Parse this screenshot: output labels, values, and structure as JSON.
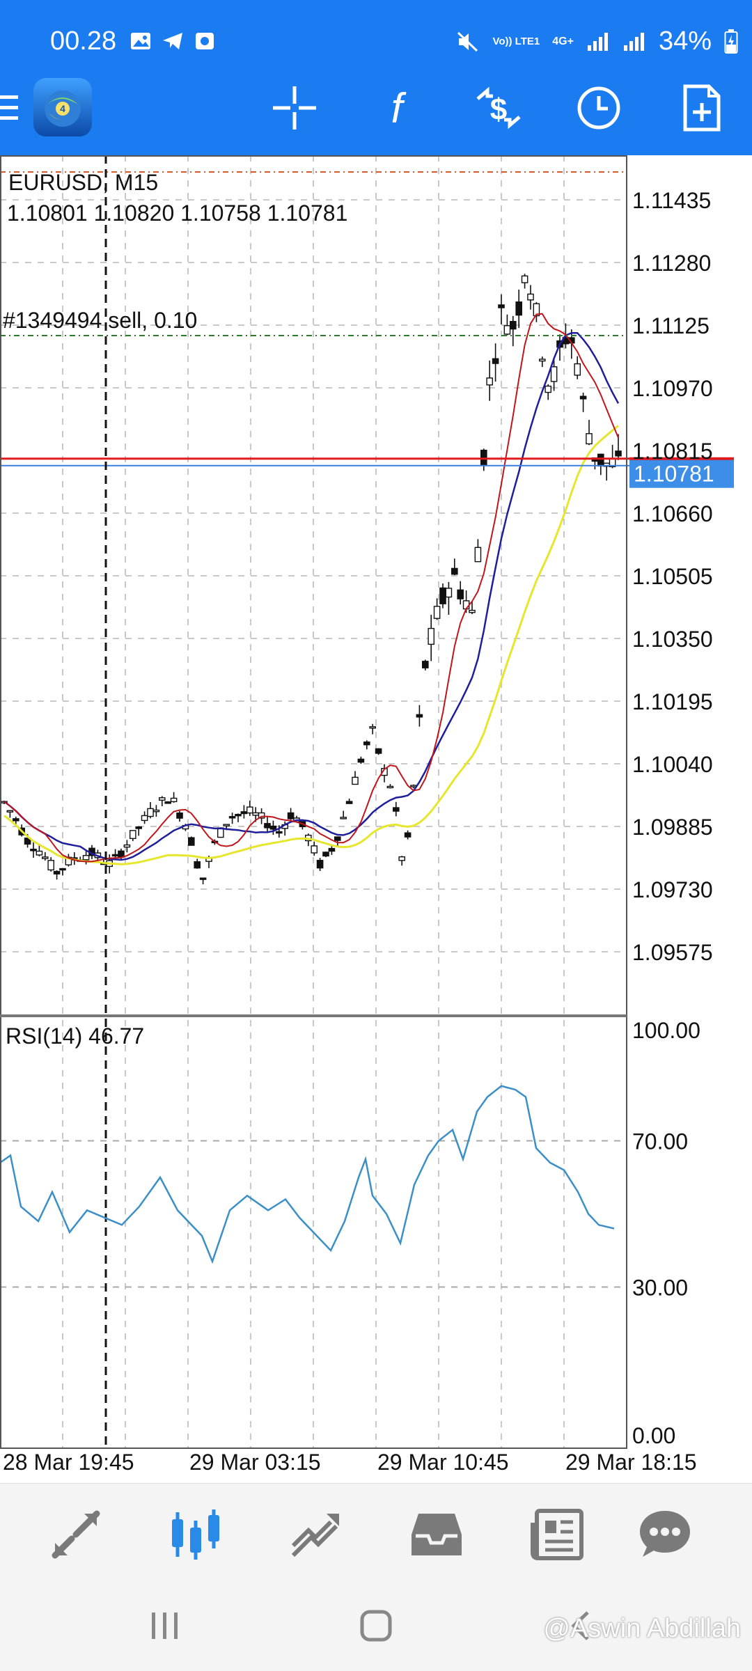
{
  "status_bar": {
    "time": "00.28",
    "network": "4G+",
    "volte": "Vo)) LTE1",
    "battery": "34%"
  },
  "toolbar": {
    "icons": [
      "menu-icon",
      "crosshair-icon",
      "indicators-icon",
      "trade-icon",
      "clock-icon",
      "new-order-icon"
    ]
  },
  "chart": {
    "symbol_timeframe": "EURUSD, M15",
    "ohlc": "1.10801 1.10820 1.10758 1.10781",
    "order_label": "#1349494 sell, 0.10",
    "current_price": "1.10781",
    "price_ticks": [
      "1.11435",
      "1.11280",
      "1.11125",
      "1.10970",
      "1.10660",
      "1.10505",
      "1.10350",
      "1.10195",
      "1.10040",
      "1.09885",
      "1.09730",
      "1.09575"
    ],
    "hidden_tick": "1.10815",
    "rsi_label": "RSI(14) 46.77",
    "rsi_ticks": [
      "100.00",
      "70.00",
      "30.00",
      "0.00"
    ],
    "time_ticks": [
      "28 Mar 19:45",
      "29 Mar 03:15",
      "29 Mar 10:45",
      "29 Mar 18:15"
    ],
    "colors": {
      "bg": "#ffffff",
      "grid": "#c8c8c8",
      "ma_fast": "#c0161b",
      "ma_mid": "#1e1e9c",
      "ma_slow": "#e6e62c",
      "rsi": "#3a8fc8",
      "bid_line": "#e01b1b",
      "ask_line": "#3c7ee0",
      "order_line": "#2a7a2a",
      "price_tag": "#3c8ee8"
    }
  },
  "bottom_nav": {
    "items": [
      "quotes-icon",
      "chart-icon",
      "trade-icon",
      "history-icon",
      "news-icon",
      "chat-icon"
    ]
  },
  "watermark": "@Aswin Abdillah"
}
